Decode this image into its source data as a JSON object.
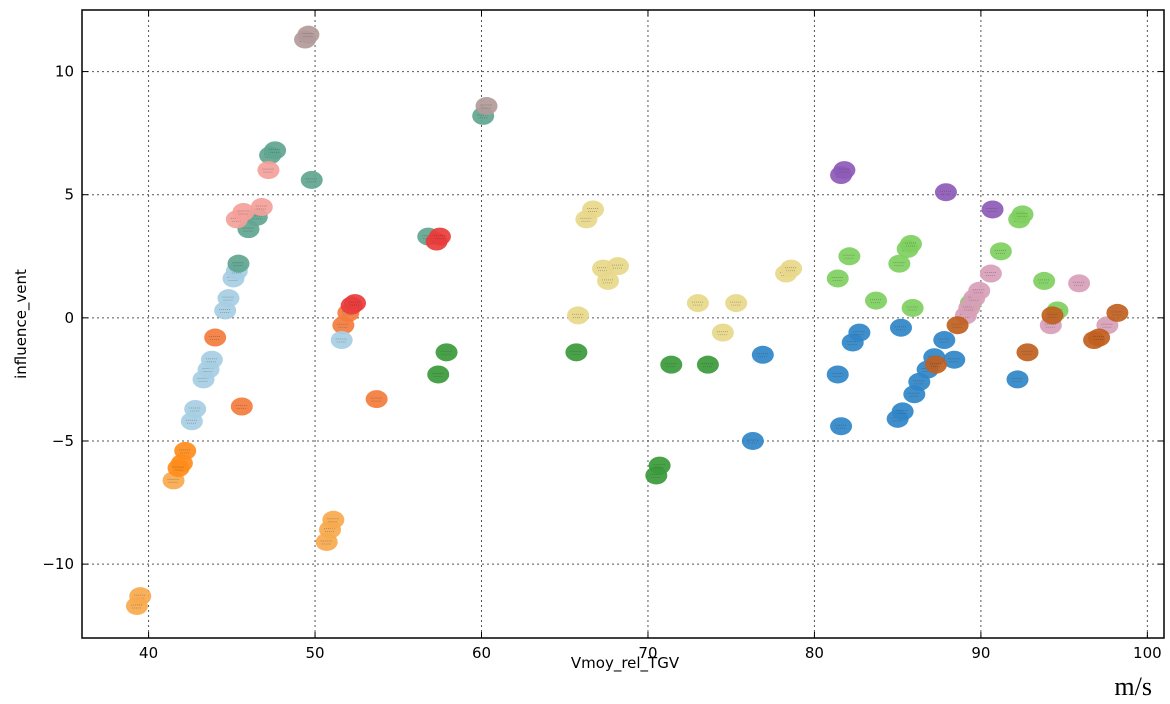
{
  "chart_data": {
    "type": "scatter",
    "title": "",
    "xlabel": "Vmoy_rel_TGV",
    "ylabel": "influence_vent",
    "unit": "m/s",
    "xlim": [
      36,
      101
    ],
    "ylim": [
      -13,
      12.5
    ],
    "x_ticks": [
      40,
      50,
      60,
      70,
      80,
      90,
      100
    ],
    "y_ticks": [
      -10,
      -5,
      0,
      5,
      10
    ],
    "grid": true,
    "legend": "none",
    "series": [
      {
        "color": "#f7a94d",
        "points": [
          [
            39.5,
            -11.3
          ],
          [
            39.3,
            -11.7
          ],
          [
            41.5,
            -6.6
          ],
          [
            50.7,
            -9.1
          ],
          [
            50.9,
            -8.6
          ],
          [
            51.1,
            -8.2
          ]
        ]
      },
      {
        "color": "#ff8c1a",
        "points": [
          [
            42.2,
            -5.4
          ],
          [
            42.0,
            -5.9
          ],
          [
            41.8,
            -6.1
          ]
        ]
      },
      {
        "color": "#f47c3c",
        "points": [
          [
            44.0,
            -0.8
          ],
          [
            45.6,
            -3.6
          ],
          [
            53.7,
            -3.3
          ],
          [
            51.7,
            -0.3
          ],
          [
            52.0,
            0.2
          ]
        ]
      },
      {
        "color": "#a6cee3",
        "points": [
          [
            42.6,
            -4.2
          ],
          [
            42.8,
            -3.7
          ],
          [
            43.3,
            -2.5
          ],
          [
            43.6,
            -2.1
          ],
          [
            43.8,
            -1.7
          ],
          [
            44.6,
            0.3
          ],
          [
            44.8,
            0.8
          ],
          [
            45.1,
            1.6
          ],
          [
            45.3,
            1.9
          ],
          [
            51.6,
            -0.9
          ]
        ]
      },
      {
        "color": "#5fa58f",
        "points": [
          [
            45.4,
            2.2
          ],
          [
            46.0,
            3.6
          ],
          [
            46.5,
            4.1
          ],
          [
            47.3,
            6.6
          ],
          [
            47.6,
            6.8
          ],
          [
            49.8,
            5.6
          ],
          [
            56.8,
            3.3
          ],
          [
            60.1,
            8.2
          ]
        ]
      },
      {
        "color": "#f4a09a",
        "points": [
          [
            45.3,
            4.0
          ],
          [
            45.7,
            4.3
          ],
          [
            46.8,
            4.5
          ],
          [
            47.2,
            6.0
          ]
        ]
      },
      {
        "color": "#b39a9a",
        "points": [
          [
            49.4,
            11.3
          ],
          [
            49.6,
            11.5
          ],
          [
            60.3,
            8.6
          ]
        ]
      },
      {
        "color": "#e83c3c",
        "points": [
          [
            57.3,
            3.1
          ],
          [
            57.5,
            3.3
          ],
          [
            52.2,
            0.5
          ],
          [
            52.4,
            0.6
          ]
        ]
      },
      {
        "color": "#3a9a3a",
        "points": [
          [
            57.4,
            -2.3
          ],
          [
            57.9,
            -1.4
          ],
          [
            65.7,
            -1.4
          ],
          [
            71.4,
            -1.9
          ],
          [
            73.6,
            -1.9
          ],
          [
            70.5,
            -6.4
          ],
          [
            70.7,
            -6.0
          ]
        ]
      },
      {
        "color": "#e8d88a",
        "points": [
          [
            66.3,
            4.0
          ],
          [
            66.7,
            4.4
          ],
          [
            67.3,
            2.0
          ],
          [
            67.6,
            1.5
          ],
          [
            68.2,
            2.1
          ],
          [
            65.8,
            0.1
          ],
          [
            73.0,
            0.6
          ],
          [
            75.3,
            0.6
          ],
          [
            74.5,
            -0.6
          ],
          [
            78.3,
            1.8
          ],
          [
            78.6,
            2.0
          ]
        ]
      },
      {
        "color": "#2f86c8",
        "points": [
          [
            76.9,
            -1.5
          ],
          [
            76.3,
            -5.0
          ],
          [
            81.4,
            -2.3
          ],
          [
            81.6,
            -4.4
          ],
          [
            82.3,
            -1.0
          ],
          [
            82.7,
            -0.6
          ],
          [
            85.0,
            -4.1
          ],
          [
            85.3,
            -3.8
          ],
          [
            85.2,
            -0.4
          ],
          [
            86.0,
            -3.1
          ],
          [
            86.3,
            -2.6
          ],
          [
            86.8,
            -2.1
          ],
          [
            87.2,
            -1.6
          ],
          [
            87.8,
            -0.9
          ],
          [
            88.4,
            -1.7
          ],
          [
            92.2,
            -2.5
          ]
        ]
      },
      {
        "color": "#7fcf5f",
        "points": [
          [
            81.4,
            1.6
          ],
          [
            82.1,
            2.5
          ],
          [
            83.7,
            0.7
          ],
          [
            85.1,
            2.2
          ],
          [
            85.6,
            2.8
          ],
          [
            85.8,
            3.0
          ],
          [
            85.9,
            0.4
          ],
          [
            91.2,
            2.7
          ],
          [
            92.3,
            4.0
          ],
          [
            92.5,
            4.2
          ],
          [
            93.8,
            1.5
          ],
          [
            94.6,
            0.3
          ],
          [
            89.4,
            0.6
          ]
        ]
      },
      {
        "color": "#8e5ab8",
        "points": [
          [
            81.6,
            5.8
          ],
          [
            81.8,
            6.0
          ],
          [
            87.9,
            5.1
          ],
          [
            90.7,
            4.4
          ]
        ]
      },
      {
        "color": "#d8a0b8",
        "points": [
          [
            89.1,
            0.1
          ],
          [
            89.3,
            0.4
          ],
          [
            89.6,
            0.8
          ],
          [
            89.9,
            1.1
          ],
          [
            90.6,
            1.8
          ],
          [
            94.2,
            -0.3
          ],
          [
            95.9,
            1.4
          ],
          [
            97.6,
            -0.3
          ]
        ]
      },
      {
        "color": "#c06020",
        "points": [
          [
            87.3,
            -1.9
          ],
          [
            92.8,
            -1.4
          ],
          [
            96.8,
            -0.9
          ],
          [
            97.1,
            -0.8
          ],
          [
            98.2,
            0.2
          ],
          [
            94.3,
            0.1
          ],
          [
            88.6,
            -0.3
          ]
        ]
      }
    ]
  }
}
